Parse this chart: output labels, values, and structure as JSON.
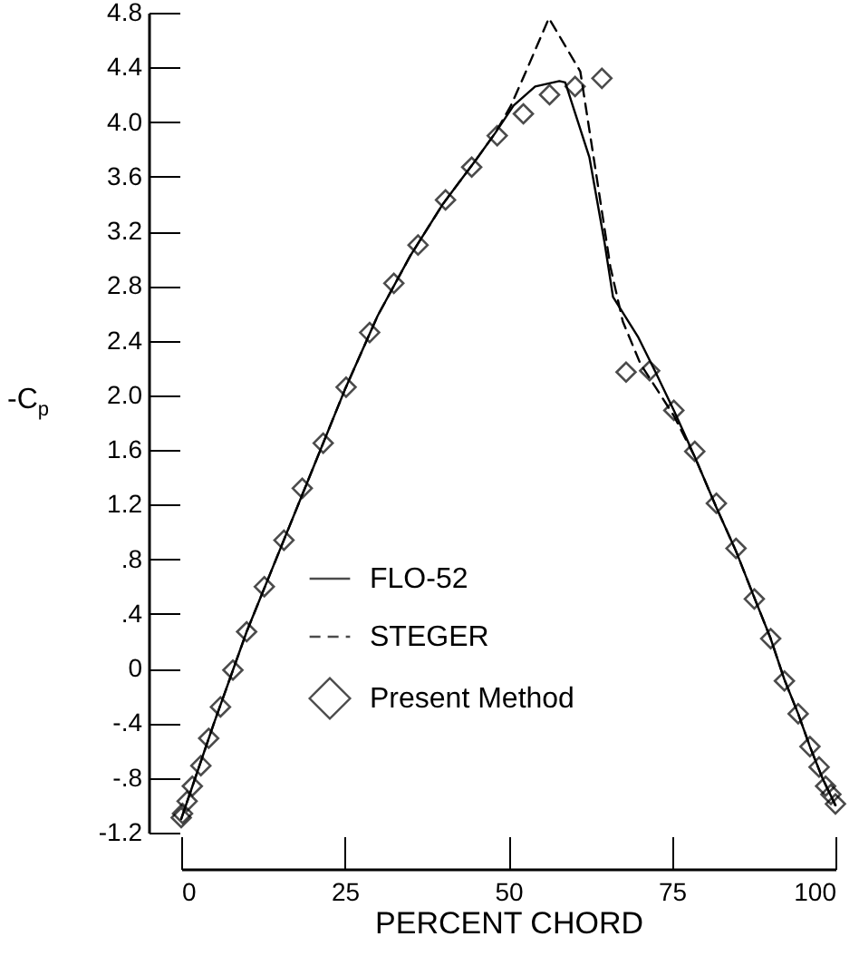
{
  "chart_data": {
    "type": "line",
    "xlabel": "PERCENT CHORD",
    "ylabel": "-C$_{p}$",
    "xlim": [
      0,
      100
    ],
    "xticks": [
      0,
      25,
      50,
      75,
      100
    ],
    "ylim": [
      -1.2,
      4.8
    ],
    "yticks": [
      {
        "value": -1.2,
        "label": "-1.2"
      },
      {
        "value": -0.8,
        "label": "-.8"
      },
      {
        "value": -0.4,
        "label": "-.4"
      },
      0,
      {
        "value": 0.4,
        "label": ".4"
      },
      {
        "value": 0.8,
        "label": ".8"
      },
      1.2,
      1.6,
      {
        "value": 2,
        "label": "2.0"
      },
      2.4,
      2.8,
      3.2,
      3.6,
      {
        "value": 4,
        "label": "4.0"
      },
      4.4,
      4.8
    ],
    "grid": false,
    "legend": "bottom",
    "series": [
      {
        "name": "FLO-52",
        "line_style": "solid",
        "color": "#000000",
        "x": [
          0,
          2,
          5,
          10,
          15,
          20,
          25,
          30,
          35,
          40,
          45,
          48,
          50.8,
          54.1,
          57.8,
          58.7,
          62.4,
          64.7,
          66,
          69.8,
          72.5,
          75.3,
          78.5,
          81.8,
          84.8,
          87.6,
          90.1,
          92.2,
          94.3,
          96.1,
          98,
          100
        ],
        "values": [
          -1.1,
          -0.82,
          -0.4,
          0.27,
          0.86,
          1.45,
          2.04,
          2.58,
          3.02,
          3.4,
          3.72,
          3.92,
          4.12,
          4.26,
          4.3,
          4.29,
          3.74,
          3.12,
          2.72,
          2.43,
          2.17,
          1.89,
          1.55,
          1.18,
          0.86,
          0.52,
          0.22,
          -0.08,
          -0.33,
          -0.57,
          -0.8,
          -1
        ]
      },
      {
        "name": "STEGER",
        "line_style": "dashed",
        "color": "#000000",
        "x": [
          0,
          2,
          5,
          10,
          15,
          20,
          25,
          30,
          35,
          40,
          45,
          48,
          50.4,
          52.7,
          56.2,
          61,
          63.3,
          65.6,
          67.5,
          70.2,
          72.5,
          75.3,
          78.5,
          81.8,
          84.8,
          87.6,
          90.1,
          92.2,
          94.3,
          96.1,
          98,
          100
        ],
        "values": [
          -1.1,
          -0.82,
          -0.4,
          0.27,
          0.86,
          1.45,
          2.04,
          2.58,
          3.02,
          3.4,
          3.72,
          3.92,
          4.12,
          4.37,
          4.76,
          4.37,
          3.66,
          2.94,
          2.54,
          2.23,
          2.06,
          1.85,
          1.55,
          1.18,
          0.86,
          0.52,
          0.22,
          -0.08,
          -0.33,
          -0.57,
          -0.8,
          -1
        ]
      },
      {
        "name": "Present Method",
        "type": "scatter",
        "marker": "diamond",
        "color": "#000000",
        "x": [
          0,
          0.2,
          0.9,
          1.7,
          3,
          4.2,
          6,
          7.9,
          10,
          12.7,
          15.7,
          18.5,
          21.7,
          25.2,
          28.8,
          32.5,
          36.2,
          40.4,
          44.4,
          48.3,
          52.3,
          56.3,
          60.2,
          64.3,
          68,
          71.6,
          75.3,
          78.5,
          81.8,
          84.8,
          87.6,
          90.1,
          92.2,
          94.3,
          96.1,
          97.5,
          98.5,
          99.3,
          100
        ],
        "values": [
          -1.09,
          -1.06,
          -0.97,
          -0.86,
          -0.71,
          -0.51,
          -0.28,
          -0.01,
          0.27,
          0.6,
          0.94,
          1.32,
          1.65,
          2.06,
          2.46,
          2.82,
          3.1,
          3.43,
          3.67,
          3.9,
          4.06,
          4.2,
          4.26,
          4.32,
          2.17,
          2.18,
          1.89,
          1.59,
          1.21,
          0.88,
          0.51,
          0.22,
          -0.09,
          -0.33,
          -0.57,
          -0.72,
          -0.86,
          -0.92,
          -0.99
        ]
      }
    ]
  }
}
